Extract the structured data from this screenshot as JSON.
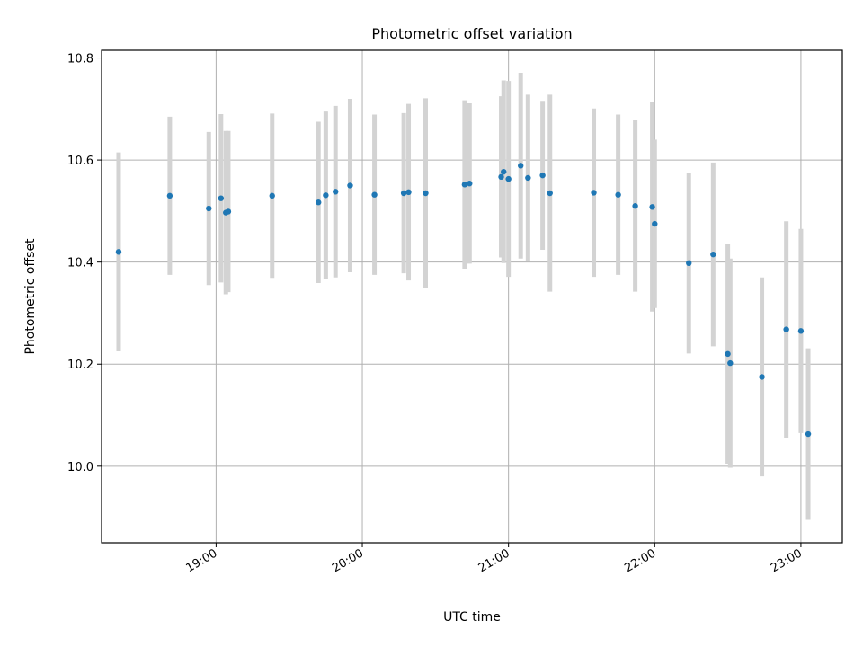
{
  "chart_data": {
    "type": "scatter",
    "title": "Photometric offset variation",
    "xlabel": "UTC time",
    "ylabel": "Photometric offset",
    "x_ticks": [
      "19:00",
      "20:00",
      "21:00",
      "22:00",
      "23:00"
    ],
    "y_ticks": [
      "10.0",
      "10.2",
      "10.4",
      "10.6",
      "10.8"
    ],
    "xlim": [
      "18:13",
      "23:17"
    ],
    "ylim": [
      9.85,
      10.815
    ],
    "grid": true,
    "colors": {
      "point": "#1f77b4",
      "errorbar": "#d3d3d3",
      "grid": "#b0b0b0"
    },
    "points": [
      {
        "x": "18:20",
        "y": 10.42,
        "err": 0.195
      },
      {
        "x": "18:41",
        "y": 10.53,
        "err": 0.155
      },
      {
        "x": "18:57",
        "y": 10.505,
        "err": 0.15
      },
      {
        "x": "19:02",
        "y": 10.525,
        "err": 0.165
      },
      {
        "x": "19:04",
        "y": 10.497,
        "err": 0.16
      },
      {
        "x": "19:05",
        "y": 10.499,
        "err": 0.158
      },
      {
        "x": "19:23",
        "y": 10.53,
        "err": 0.161
      },
      {
        "x": "19:42",
        "y": 10.517,
        "err": 0.158
      },
      {
        "x": "19:45",
        "y": 10.531,
        "err": 0.164
      },
      {
        "x": "19:49",
        "y": 10.538,
        "err": 0.168
      },
      {
        "x": "19:55",
        "y": 10.55,
        "err": 0.17
      },
      {
        "x": "20:05",
        "y": 10.532,
        "err": 0.157
      },
      {
        "x": "20:17",
        "y": 10.535,
        "err": 0.157
      },
      {
        "x": "20:19",
        "y": 10.537,
        "err": 0.173
      },
      {
        "x": "20:26",
        "y": 10.535,
        "err": 0.186
      },
      {
        "x": "20:42",
        "y": 10.552,
        "err": 0.165
      },
      {
        "x": "20:44",
        "y": 10.554,
        "err": 0.157
      },
      {
        "x": "20:57",
        "y": 10.567,
        "err": 0.158
      },
      {
        "x": "20:58",
        "y": 10.577,
        "err": 0.179
      },
      {
        "x": "21:00",
        "y": 10.563,
        "err": 0.192
      },
      {
        "x": "21:05",
        "y": 10.589,
        "err": 0.182
      },
      {
        "x": "21:08",
        "y": 10.565,
        "err": 0.163
      },
      {
        "x": "21:14",
        "y": 10.57,
        "err": 0.146
      },
      {
        "x": "21:17",
        "y": 10.535,
        "err": 0.193
      },
      {
        "x": "21:35",
        "y": 10.536,
        "err": 0.165
      },
      {
        "x": "21:45",
        "y": 10.532,
        "err": 0.157
      },
      {
        "x": "21:52",
        "y": 10.51,
        "err": 0.168
      },
      {
        "x": "21:59",
        "y": 10.508,
        "err": 0.205
      },
      {
        "x": "22:00",
        "y": 10.475,
        "err": 0.165
      },
      {
        "x": "22:14",
        "y": 10.398,
        "err": 0.177
      },
      {
        "x": "22:24",
        "y": 10.415,
        "err": 0.18
      },
      {
        "x": "22:30",
        "y": 10.22,
        "err": 0.215
      },
      {
        "x": "22:31",
        "y": 10.202,
        "err": 0.205
      },
      {
        "x": "22:44",
        "y": 10.175,
        "err": 0.195
      },
      {
        "x": "22:54",
        "y": 10.268,
        "err": 0.212
      },
      {
        "x": "23:00",
        "y": 10.265,
        "err": 0.2
      },
      {
        "x": "23:03",
        "y": 10.063,
        "err": 0.168
      }
    ]
  }
}
